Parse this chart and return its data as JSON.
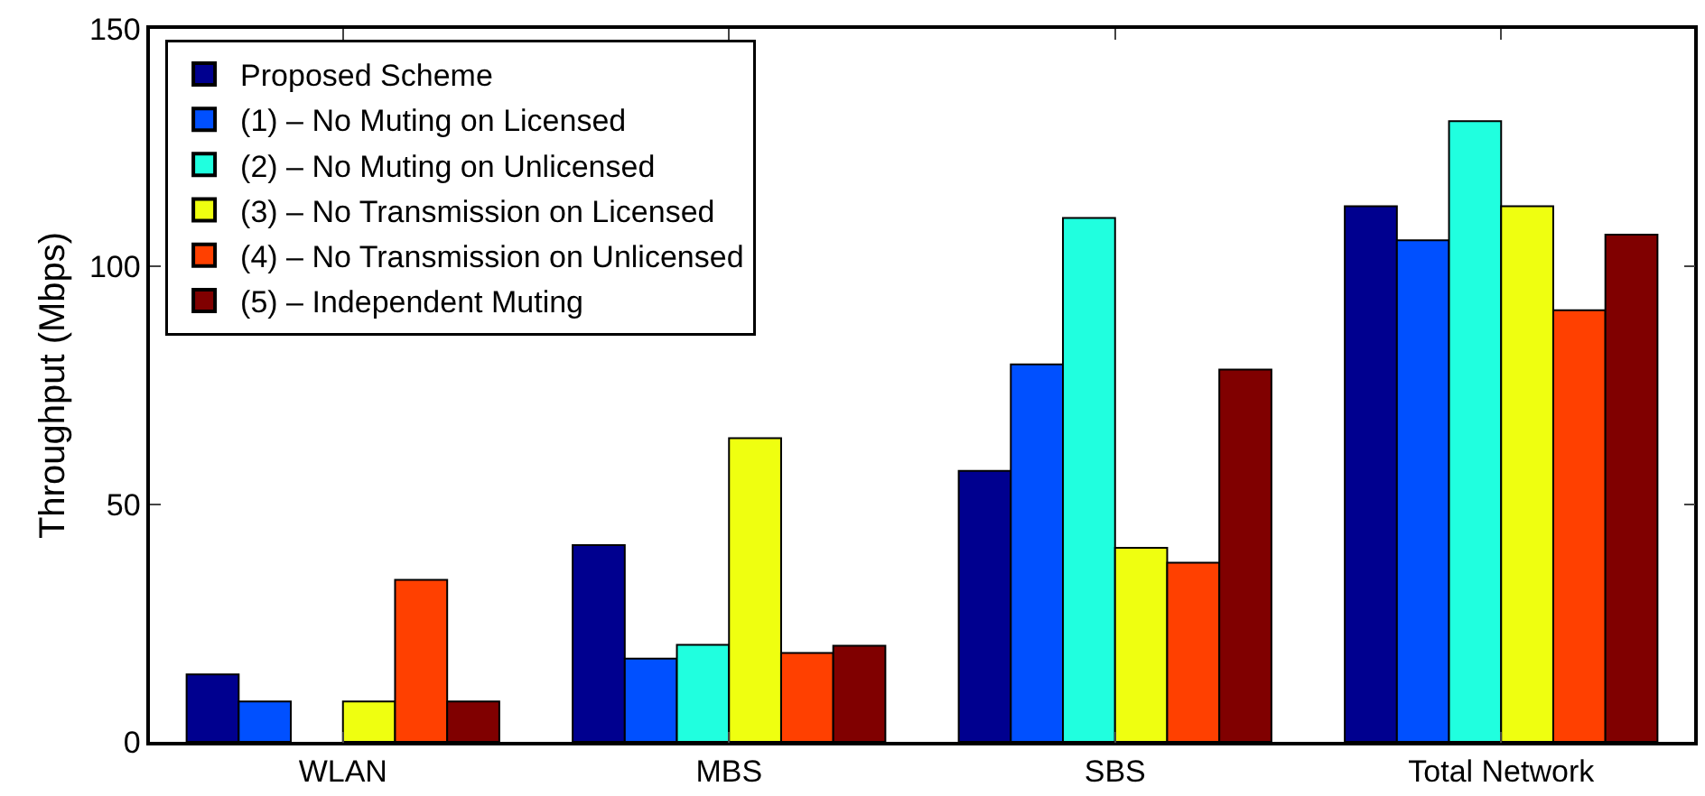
{
  "chart_data": {
    "type": "bar",
    "ylabel": "Throughput (Mbps)",
    "categories": [
      "WLAN",
      "MBS",
      "SBS",
      "Total Network"
    ],
    "series": [
      {
        "name": "Proposed Scheme",
        "color": "#00008f",
        "values": [
          14.2,
          41.4,
          57.0,
          112.7
        ]
      },
      {
        "name": "(1) – No Muting on Licensed",
        "color": "#0050ff",
        "values": [
          8.5,
          17.5,
          79.4,
          105.5
        ]
      },
      {
        "name": "(2) – No Muting on Unlicensed",
        "color": "#20ffdf",
        "values": [
          0,
          20.4,
          110.2,
          130.6
        ]
      },
      {
        "name": "(3) – No Transmission on Licensed",
        "color": "#efff10",
        "values": [
          8.5,
          63.9,
          40.8,
          112.7
        ]
      },
      {
        "name": "(4) – No Transmission on Unlicensed",
        "color": "#ff4000",
        "values": [
          34.1,
          18.7,
          37.7,
          90.8
        ]
      },
      {
        "name": "(5) – Independent Muting",
        "color": "#800000",
        "values": [
          8.5,
          20.2,
          78.3,
          106.7
        ]
      }
    ],
    "ylim": [
      0,
      150
    ],
    "yticks": [
      0,
      50,
      100,
      150
    ],
    "grid": false,
    "legend": "top left"
  }
}
